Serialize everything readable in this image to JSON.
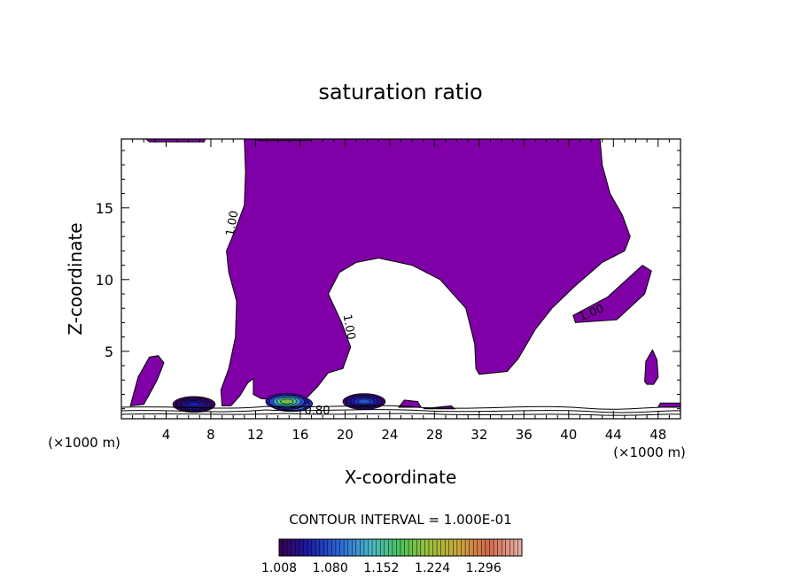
{
  "chart_data": {
    "type": "contour",
    "title": "saturation ratio",
    "xlabel": "X-coordinate",
    "ylabel": "Z-coordinate",
    "x_unit_label": "(×1000 m)",
    "x_unit_label_right": "(×1000 m)",
    "xlim": [
      0,
      50
    ],
    "ylim": [
      0.3,
      19.8
    ],
    "x_ticks": [
      4,
      8,
      12,
      16,
      20,
      24,
      28,
      32,
      36,
      40,
      44,
      48
    ],
    "y_ticks": [
      5,
      10,
      15
    ],
    "contour_interval_text": "CONTOUR INTERVAL = 1.000E-01",
    "contour_labels": [
      "1.00",
      "1.00",
      "1.00",
      "0.80"
    ],
    "colorbar": {
      "min": 1.008,
      "max": 1.35,
      "tick_labels": [
        "1.008",
        "1.080",
        "1.152",
        "1.224",
        "1.296"
      ]
    },
    "fill_color": "#7f00a6",
    "region_level": 1.0,
    "regions": [
      {
        "name": "main-supersaturated-region",
        "points": [
          [
            11.0,
            19.8
          ],
          [
            42.8,
            19.8
          ],
          [
            43.0,
            18.0
          ],
          [
            43.7,
            16.0
          ],
          [
            44.8,
            14.5
          ],
          [
            45.5,
            13.0
          ],
          [
            45.0,
            12.0
          ],
          [
            43.0,
            11.2
          ],
          [
            40.5,
            9.5
          ],
          [
            38.5,
            8.0
          ],
          [
            37.0,
            6.5
          ],
          [
            35.5,
            4.5
          ],
          [
            34.5,
            3.6
          ],
          [
            32.0,
            3.4
          ],
          [
            31.7,
            3.8
          ],
          [
            31.6,
            5.5
          ],
          [
            30.8,
            8.0
          ],
          [
            28.5,
            10.0
          ],
          [
            26.0,
            11.0
          ],
          [
            23.0,
            11.5
          ],
          [
            21.0,
            11.2
          ],
          [
            19.5,
            10.5
          ],
          [
            18.5,
            9.0
          ],
          [
            19.7,
            7.0
          ],
          [
            20.5,
            5.3
          ],
          [
            19.8,
            3.8
          ],
          [
            18.5,
            3.5
          ],
          [
            17.5,
            2.5
          ],
          [
            16.5,
            1.7
          ],
          [
            14.0,
            1.6
          ],
          [
            12.5,
            1.7
          ],
          [
            11.8,
            2.0
          ],
          [
            11.8,
            3.1
          ],
          [
            11.3,
            2.8
          ],
          [
            10.6,
            1.9
          ],
          [
            9.8,
            1.2
          ],
          [
            9.0,
            1.2
          ],
          [
            8.9,
            2.3
          ],
          [
            9.6,
            3.8
          ],
          [
            10.2,
            6.0
          ],
          [
            10.3,
            8.5
          ],
          [
            9.6,
            10.5
          ],
          [
            9.4,
            12.0
          ],
          [
            10.2,
            13.5
          ],
          [
            11.0,
            15.2
          ],
          [
            11.1,
            17.5
          ]
        ]
      },
      {
        "name": "top-left-edge-patch",
        "points": [
          [
            2.2,
            19.8
          ],
          [
            7.5,
            19.8
          ],
          [
            7.4,
            19.6
          ],
          [
            2.5,
            19.6
          ]
        ]
      },
      {
        "name": "top-mid-edge-patch",
        "points": [
          [
            12.2,
            19.8
          ],
          [
            17.0,
            19.8
          ],
          [
            17.0,
            19.7
          ],
          [
            12.2,
            19.7
          ]
        ]
      },
      {
        "name": "tongue-right",
        "points": [
          [
            40.4,
            7.5
          ],
          [
            43.5,
            8.8
          ],
          [
            46.6,
            11.0
          ],
          [
            47.4,
            10.6
          ],
          [
            46.8,
            9.0
          ],
          [
            44.3,
            7.2
          ],
          [
            40.6,
            7.0
          ]
        ]
      },
      {
        "name": "left-plume",
        "points": [
          [
            0.8,
            1.2
          ],
          [
            1.5,
            3.2
          ],
          [
            2.5,
            4.6
          ],
          [
            3.3,
            4.7
          ],
          [
            3.8,
            4.2
          ],
          [
            3.2,
            3.0
          ],
          [
            2.5,
            2.0
          ],
          [
            2.0,
            1.3
          ]
        ]
      },
      {
        "name": "right-blob",
        "points": [
          [
            46.8,
            2.9
          ],
          [
            46.9,
            4.3
          ],
          [
            47.5,
            5.1
          ],
          [
            47.9,
            4.4
          ],
          [
            48.0,
            3.2
          ],
          [
            47.6,
            2.7
          ],
          [
            47.0,
            2.7
          ]
        ]
      },
      {
        "name": "low-band-1",
        "points": [
          [
            5.0,
            1.2
          ],
          [
            5.2,
            1.5
          ],
          [
            8.0,
            1.6
          ],
          [
            8.2,
            1.3
          ],
          [
            8.0,
            1.1
          ],
          [
            5.3,
            1.1
          ]
        ]
      },
      {
        "name": "low-band-2",
        "points": [
          [
            20.5,
            1.2
          ],
          [
            21.0,
            2.0
          ],
          [
            22.5,
            2.0
          ],
          [
            23.0,
            1.3
          ],
          [
            22.6,
            1.1
          ],
          [
            21.0,
            1.1
          ]
        ]
      },
      {
        "name": "low-band-3",
        "points": [
          [
            24.8,
            1.1
          ],
          [
            25.3,
            1.6
          ],
          [
            26.5,
            1.5
          ],
          [
            26.8,
            1.1
          ]
        ]
      },
      {
        "name": "low-band-4",
        "points": [
          [
            27.0,
            1.0
          ],
          [
            29.5,
            1.2
          ],
          [
            29.8,
            1.0
          ]
        ]
      },
      {
        "name": "low-band-5",
        "points": [
          [
            48.0,
            1.1
          ],
          [
            48.2,
            1.4
          ],
          [
            50.0,
            1.4
          ],
          [
            50.0,
            1.1
          ]
        ]
      }
    ],
    "cores": [
      {
        "x": 15.2,
        "y": 1.35,
        "level": 1.28
      },
      {
        "x": 14.8,
        "y": 1.5,
        "level": 1.2
      },
      {
        "x": 6.5,
        "y": 1.3,
        "level": 1.05
      },
      {
        "x": 21.7,
        "y": 1.5,
        "level": 1.08
      }
    ]
  }
}
